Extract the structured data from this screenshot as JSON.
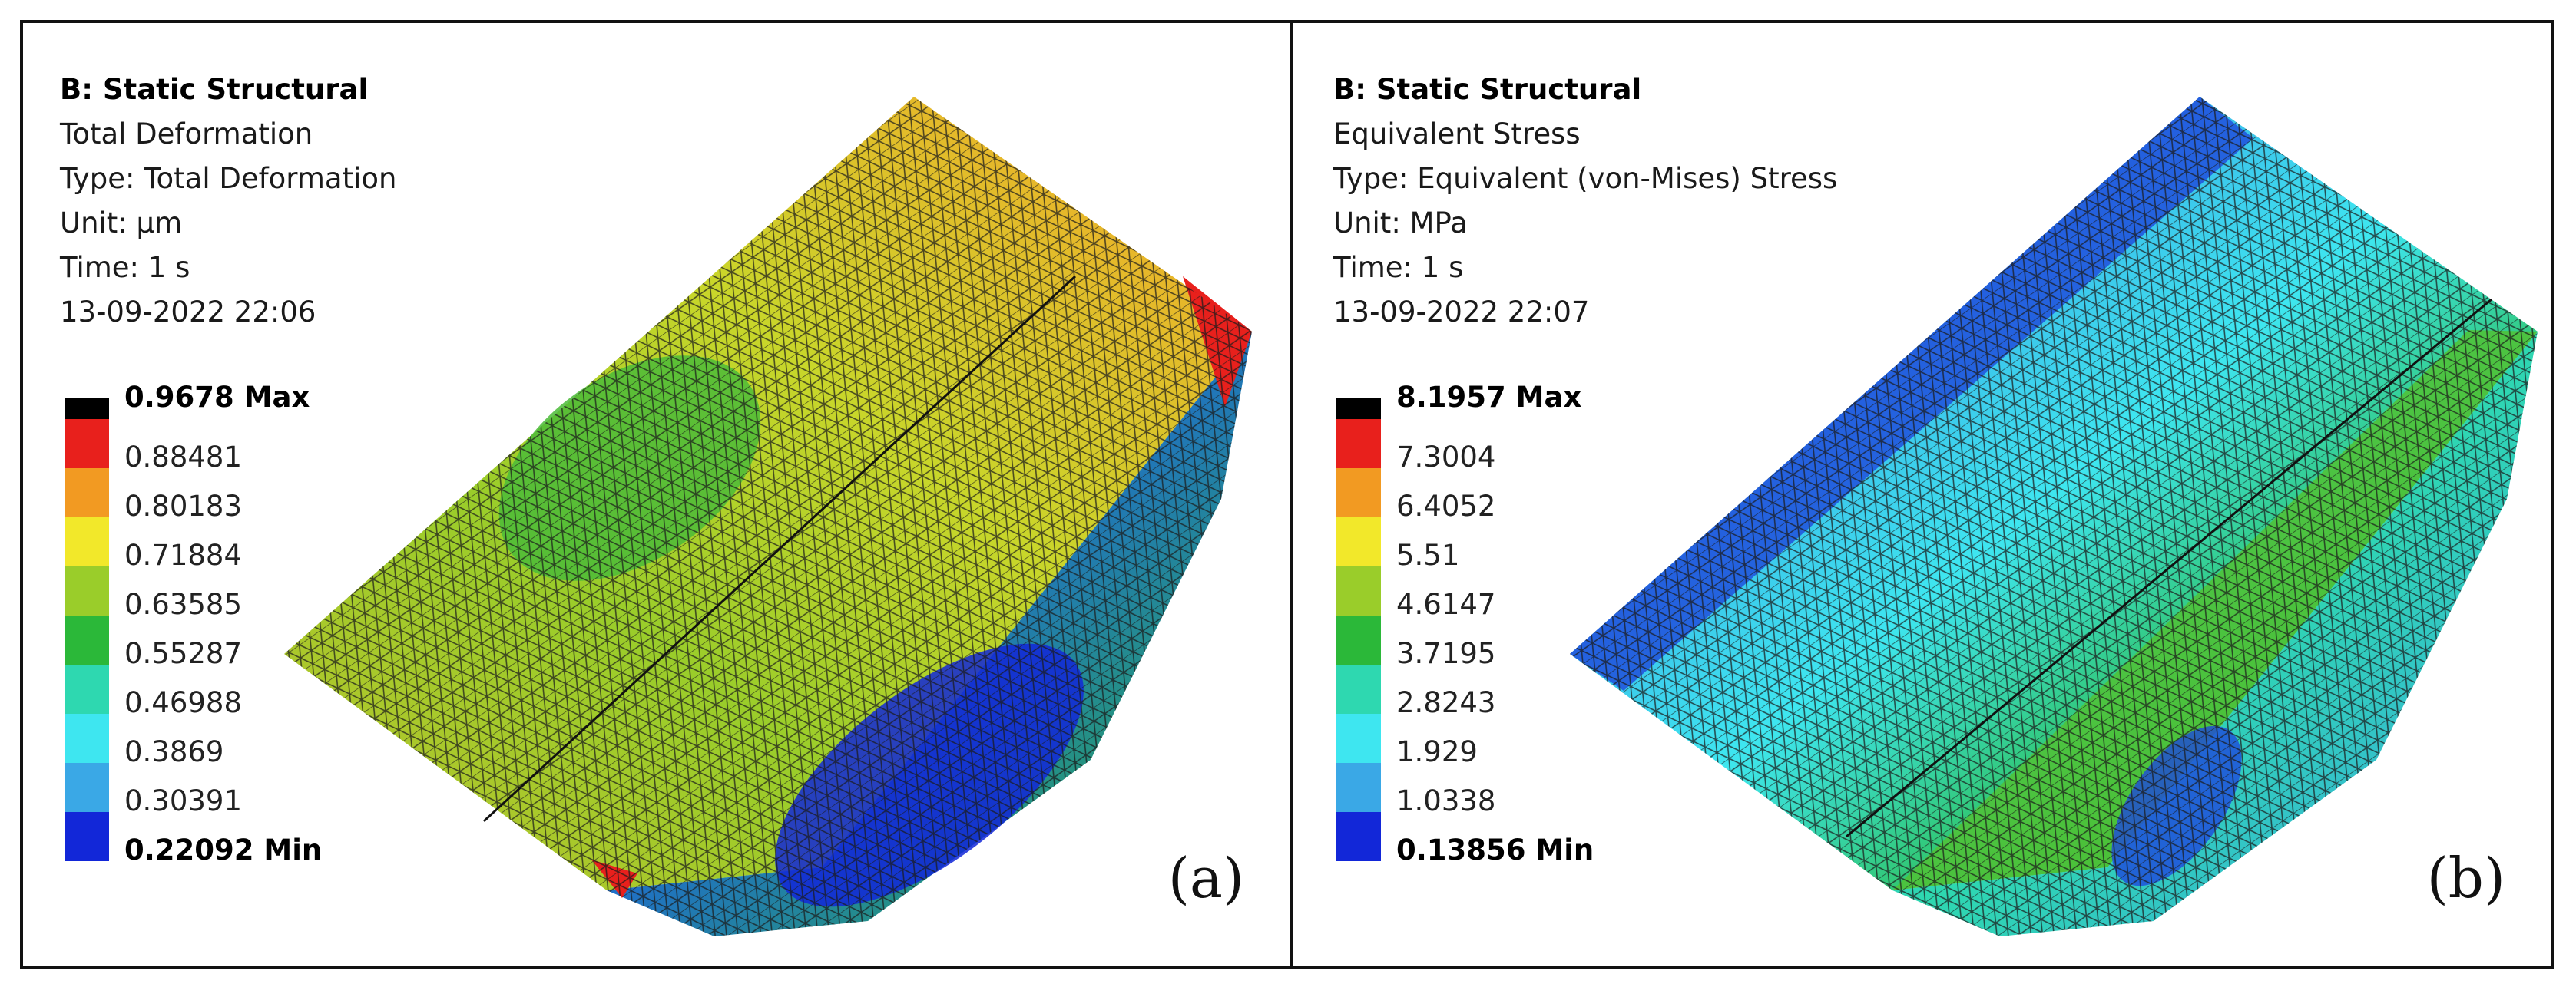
{
  "panel_a": {
    "analysis": "B: Static Structural",
    "result": "Total Deformation",
    "type": "Type: Total Deformation",
    "unit": "Unit: μm",
    "time": "Time: 1 s",
    "date": "13-09-2022 22:06",
    "legend_max": "0.9678 Max",
    "legend_values": [
      "0.88481",
      "0.80183",
      "0.71884",
      "0.63585",
      "0.55287",
      "0.46988",
      "0.3869",
      "0.30391"
    ],
    "legend_min": "0.22092 Min",
    "tag": "(a)"
  },
  "panel_b": {
    "analysis": "B: Static Structural",
    "result": "Equivalent Stress",
    "type": "Type: Equivalent (von-Mises) Stress",
    "unit": "Unit: MPa",
    "time": "Time: 1 s",
    "date": "13-09-2022 22:07",
    "legend_max": "8.1957 Max",
    "legend_values": [
      "7.3004",
      "6.4052",
      "5.51",
      "4.6147",
      "3.7195",
      "2.8243",
      "1.929",
      "1.0338"
    ],
    "legend_min": "0.13856 Min",
    "tag": "(b)"
  },
  "colors": {
    "scale": [
      "#e8201c",
      "#f29a22",
      "#f2e82a",
      "#9acd2a",
      "#2bb839",
      "#2ed8b0",
      "#3ee6f0",
      "#3aa8e6",
      "#1227d8"
    ]
  }
}
